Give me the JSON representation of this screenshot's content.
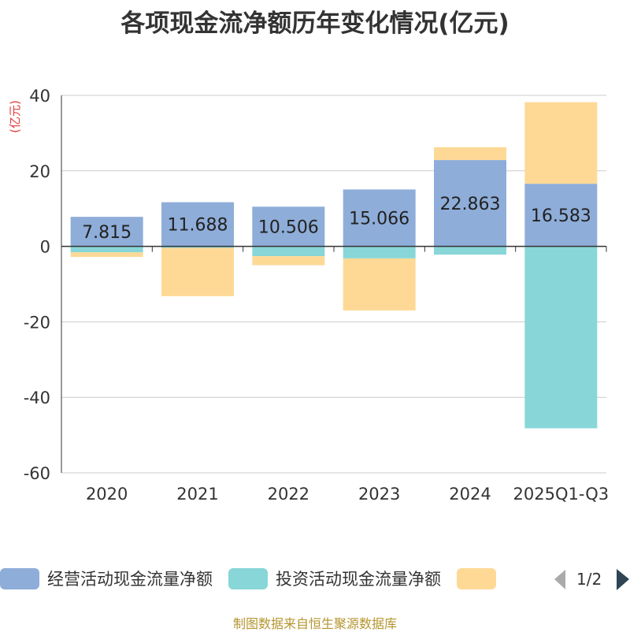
{
  "chart_data": {
    "type": "bar",
    "stacked": true,
    "title": "各项现金流净额历年变化情况(亿元)",
    "ylabel": "(亿元)",
    "xlabel": "",
    "categories": [
      "2020",
      "2021",
      "2022",
      "2023",
      "2024",
      "2025Q1-Q3"
    ],
    "ylim": [
      -60,
      40
    ],
    "yticks": [
      -60,
      -40,
      -20,
      0,
      20,
      40
    ],
    "grid": true,
    "series": [
      {
        "name": "经营活动现金流量净额",
        "color": "#8eadd9",
        "values": [
          7.815,
          11.688,
          10.506,
          15.066,
          22.863,
          16.583
        ],
        "labels": [
          "7.815",
          "11.688",
          "10.506",
          "15.066",
          "22.863",
          "16.583"
        ]
      },
      {
        "name": "投资活动现金流量净额",
        "color": "#88d6d8",
        "values": [
          -1.6,
          -0.4,
          -2.6,
          -3.2,
          -2.2,
          -48.2
        ]
      },
      {
        "name": "",
        "color": "#fed996",
        "values": [
          -1.2,
          -12.8,
          -2.4,
          -13.8,
          3.4,
          21.6
        ]
      }
    ],
    "legend": {
      "position": "bottom",
      "page": "1/2"
    }
  },
  "source": "制图数据来自恒生聚源数据库"
}
